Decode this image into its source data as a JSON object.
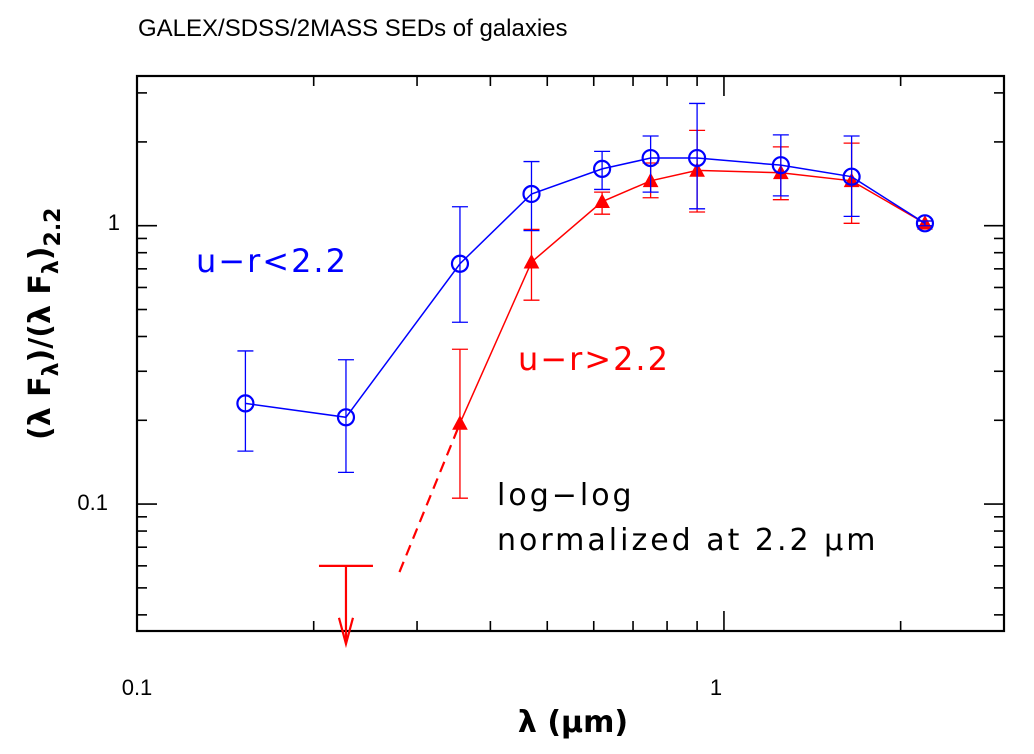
{
  "chart_data": {
    "type": "line",
    "title": "GALEX/SDSS/2MASS SEDs of galaxies",
    "xlabel": "λ  (μm)",
    "ylabel": "(λ F_λ)/(λ F_λ)_2.2",
    "ylabel_main": "(λ F",
    "ylabel_sub1": "λ",
    "ylabel_mid": ")/(λ F",
    "ylabel_sub2": "λ",
    "ylabel_close": ")",
    "ylabel_sub3": "2.2",
    "xscale": "log",
    "yscale": "log",
    "xlim": [
      0.1,
      3.0
    ],
    "ylim": [
      0.035,
      3.45
    ],
    "xticklabels": [
      {
        "value": 0.1,
        "label": "0.1"
      },
      {
        "value": 1,
        "label": "1"
      }
    ],
    "yticklabels": [
      {
        "value": 0.1,
        "label": "0.1"
      },
      {
        "value": 1,
        "label": "1"
      }
    ],
    "series": [
      {
        "name": "u−r<2.2",
        "label": "u−r<2.2",
        "color": "#0000ff",
        "marker": "circle",
        "x": [
          0.153,
          0.227,
          0.355,
          0.47,
          0.62,
          0.75,
          0.9,
          1.25,
          1.65,
          2.2
        ],
        "y": [
          0.23,
          0.205,
          0.73,
          1.3,
          1.6,
          1.75,
          1.75,
          1.65,
          1.5,
          1.02
        ],
        "yerr_low": [
          0.155,
          0.13,
          0.45,
          0.96,
          1.35,
          1.32,
          1.15,
          1.28,
          1.08,
          1.0
        ],
        "yerr_high": [
          0.355,
          0.33,
          1.17,
          1.7,
          1.85,
          2.1,
          2.75,
          2.12,
          2.1,
          1.04
        ]
      },
      {
        "name": "u−r>2.2",
        "label": "u−r>2.2",
        "color": "#ff0000",
        "marker": "triangle",
        "x": [
          0.355,
          0.47,
          0.62,
          0.75,
          0.9,
          1.25,
          1.65,
          2.2
        ],
        "y": [
          0.195,
          0.74,
          1.22,
          1.45,
          1.58,
          1.55,
          1.45,
          1.02
        ],
        "yerr_low": [
          0.105,
          0.54,
          1.1,
          1.26,
          1.12,
          1.24,
          1.02,
          1.0
        ],
        "yerr_high": [
          0.36,
          0.97,
          1.32,
          1.68,
          2.2,
          1.92,
          1.98,
          1.04
        ]
      }
    ],
    "upper_limit": {
      "x": 0.227,
      "y": 0.06,
      "color": "#ff0000"
    },
    "dashed_extension": {
      "from": {
        "x": 0.28,
        "y": 0.057
      },
      "to": {
        "x": 0.355,
        "y": 0.195
      },
      "color": "#ff0000"
    },
    "annotations": {
      "blue_label": "u−r<2.2",
      "red_label": "u−r>2.2",
      "note_line1": "log−log",
      "note_line2": "normalized at 2.2 μm"
    }
  }
}
